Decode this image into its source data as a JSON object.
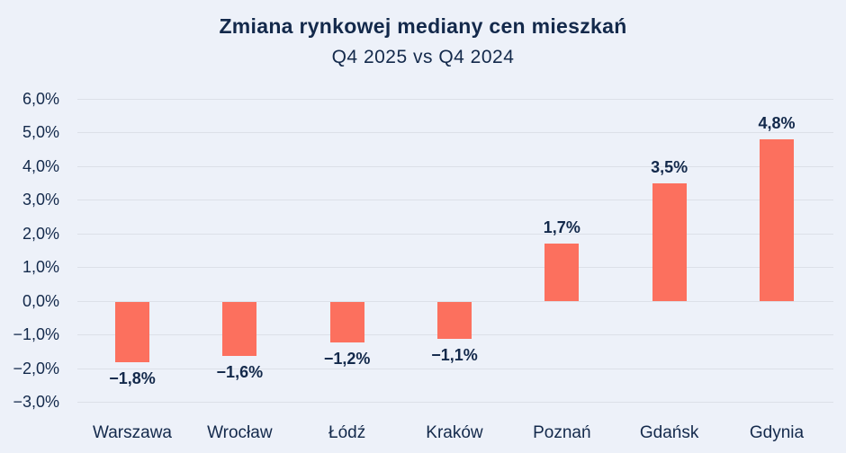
{
  "header": {
    "title": "Zmiana rynkowej mediany cen mieszkań",
    "subtitle": "Q4 2025 vs Q4 2024"
  },
  "chart_data": {
    "type": "bar",
    "title": "Zmiana rynkowej mediany cen mieszkań",
    "subtitle": "Q4 2025 vs Q4 2024",
    "categories": [
      "Warszawa",
      "Wrocław",
      "Łódź",
      "Kraków",
      "Poznań",
      "Gdańsk",
      "Gdynia"
    ],
    "values": [
      -1.8,
      -1.6,
      -1.2,
      -1.1,
      1.7,
      3.5,
      4.8
    ],
    "value_labels": [
      "−1,8%",
      "−1,6%",
      "−1,2%",
      "−1,1%",
      "1,7%",
      "3,5%",
      "4,8%"
    ],
    "xlabel": "",
    "ylabel": "",
    "ylim": [
      -3,
      6
    ],
    "ytick_step": 1,
    "ytick_labels": [
      "6,0%",
      "5,0%",
      "4,0%",
      "3,0%",
      "2,0%",
      "1,0%",
      "0,0%",
      "−1,0%",
      "−2,0%",
      "−3,0%"
    ],
    "grid": true,
    "legend_position": "none",
    "colors": {
      "background": "#EDF1F9",
      "bar": "#FC705E",
      "text": "#13294B",
      "gridline": "#DCE0E8"
    }
  }
}
